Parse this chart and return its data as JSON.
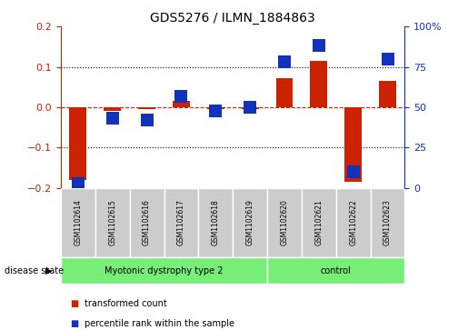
{
  "title": "GDS5276 / ILMN_1884863",
  "samples": [
    "GSM1102614",
    "GSM1102615",
    "GSM1102616",
    "GSM1102617",
    "GSM1102618",
    "GSM1102619",
    "GSM1102620",
    "GSM1102621",
    "GSM1102622",
    "GSM1102623"
  ],
  "red_values": [
    -0.18,
    -0.01,
    -0.005,
    0.015,
    -0.005,
    -0.005,
    0.073,
    0.115,
    -0.185,
    0.065
  ],
  "blue_values": [
    3,
    43,
    42,
    57,
    48,
    50,
    78,
    88,
    10,
    80
  ],
  "groups": [
    {
      "label": "Myotonic dystrophy type 2",
      "start": 0,
      "end": 5
    },
    {
      "label": "control",
      "start": 6,
      "end": 9
    }
  ],
  "ylim_left": [
    -0.2,
    0.2
  ],
  "ylim_right": [
    0,
    100
  ],
  "yticks_left": [
    -0.2,
    -0.1,
    0.0,
    0.1,
    0.2
  ],
  "yticks_right": [
    0,
    25,
    50,
    75,
    100
  ],
  "ytick_labels_right": [
    "0",
    "25",
    "50",
    "75",
    "100%"
  ],
  "red_color": "#cc2200",
  "blue_color": "#1133bb",
  "bg_color": "#ffffff",
  "disease_state_label": "disease state",
  "legend_red_label": "transformed count",
  "legend_blue_label": "percentile rank within the sample",
  "bar_width": 0.5,
  "marker_size": 6,
  "group_color": "#77ee77",
  "gray_color": "#cccccc"
}
